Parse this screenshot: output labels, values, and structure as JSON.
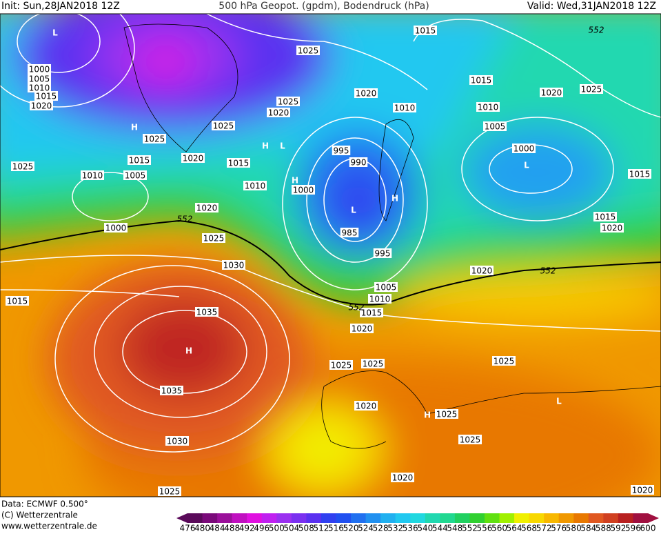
{
  "header": {
    "init": "Init: Sun,28JAN2018 12Z",
    "title": "500 hPa Geopot. (gpdm), Bodendruck (hPa)",
    "valid": "Valid: Wed,31JAN2018 12Z"
  },
  "footer": {
    "data": "Data: ECMWF  0.500°",
    "copyright": "(C) Wetterzentrale",
    "url": "www.wetterzentrale.de"
  },
  "colorbar": {
    "ticks": [
      476,
      480,
      484,
      488,
      492,
      496,
      500,
      504,
      508,
      512,
      516,
      520,
      524,
      528,
      532,
      536,
      540,
      544,
      548,
      552,
      556,
      560,
      564,
      568,
      572,
      576,
      580,
      584,
      588,
      592,
      596,
      600
    ],
    "colors": [
      "#5a0a5a",
      "#7a0a7a",
      "#9a109a",
      "#c010c0",
      "#e010e0",
      "#c020f0",
      "#9a30f0",
      "#7a30f0",
      "#5a30f0",
      "#3040f0",
      "#2050f0",
      "#2070f0",
      "#2090f0",
      "#20b0f0",
      "#20c8f0",
      "#20d8e0",
      "#20d8b0",
      "#20d890",
      "#20d060",
      "#30d030",
      "#60e010",
      "#a0f000",
      "#f0f000",
      "#f8d800",
      "#f8b800",
      "#f09800",
      "#e87800",
      "#e05820",
      "#d04020",
      "#b82020",
      "#a01040"
    ]
  },
  "isobar_labels": [
    "1015",
    "1025",
    "1000",
    "1005",
    "1010",
    "1015",
    "1020",
    "1015",
    "1020",
    "1025",
    "1010",
    "1020",
    "1010",
    "1025",
    "1005",
    "1020",
    "1025",
    "1025",
    "1020",
    "1015",
    "1015",
    "1025",
    "1010",
    "1005",
    "1010",
    "1000",
    "995",
    "990",
    "1015",
    "1000",
    "1020",
    "1000",
    "985",
    "1015",
    "1020",
    "1025",
    "995",
    "1030",
    "1020",
    "1005",
    "1010",
    "1015",
    "1015",
    "1035",
    "1020",
    "1025",
    "1025",
    "1025",
    "1035",
    "1020",
    "1025",
    "1025",
    "1030",
    "1020",
    "1025",
    "1020"
  ],
  "pressure_centers": [
    "L",
    "H",
    "H",
    "L",
    "H",
    "L",
    "H",
    "L",
    "H",
    "H",
    "L"
  ],
  "contour_labels": [
    "552",
    "552",
    "552",
    "552"
  ]
}
